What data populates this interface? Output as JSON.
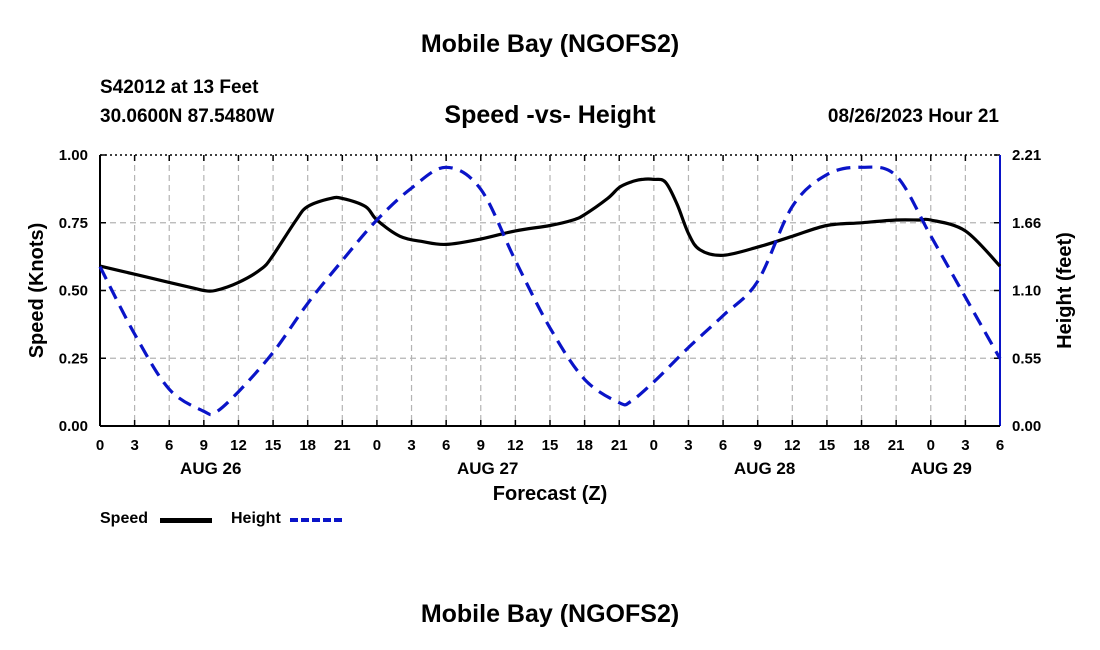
{
  "header": {
    "title": "Mobile Bay (NGOFS2)",
    "station": "S42012 at 13 Feet",
    "coords": "30.0600N  87.5480W",
    "date": "08/26/2023 Hour 21",
    "footer_title": "Mobile Bay (NGOFS2)"
  },
  "colors": {
    "speed": "#000000",
    "height": "#0a14c8",
    "grid": "#b4b4b4"
  },
  "chart_data": {
    "type": "line",
    "title": "Speed -vs- Height",
    "xlabel": "Forecast (Z)",
    "ylabel_left": "Speed (Knots)",
    "ylabel_right": "Height (feet)",
    "xlim": [
      0,
      78
    ],
    "ylim_left": [
      0,
      1.0
    ],
    "ylim_right": [
      0,
      2.21
    ],
    "x_tick_step": 3,
    "x_tick_labels": [
      "0",
      "3",
      "6",
      "9",
      "12",
      "15",
      "18",
      "21",
      "0",
      "3",
      "6",
      "9",
      "12",
      "15",
      "18",
      "21",
      "0",
      "3",
      "6",
      "9",
      "12",
      "15",
      "18",
      "21",
      "0",
      "3",
      "6"
    ],
    "left_tick_labels": [
      "0.00",
      "0.25",
      "0.50",
      "0.75",
      "1.00"
    ],
    "right_tick_labels": [
      "0.00",
      "0.55",
      "1.10",
      "1.66",
      "2.21"
    ],
    "day_labels": [
      {
        "label": "AUG 26",
        "x": 9.6
      },
      {
        "label": "AUG 27",
        "x": 33.6
      },
      {
        "label": "AUG 28",
        "x": 57.6
      },
      {
        "label": "AUG 29",
        "x": 72.9
      }
    ],
    "grid": true,
    "legend": "bottom-left",
    "legend_labels": {
      "speed": "Speed",
      "height": "Height"
    },
    "series": [
      {
        "name": "Speed",
        "axis": "left",
        "style": "solid",
        "x": [
          0,
          3,
          6,
          8,
          9,
          10,
          12,
          14,
          15,
          17,
          18,
          20,
          21,
          23,
          24,
          26,
          28,
          30,
          33,
          36,
          39,
          41,
          42,
          44,
          45,
          46,
          47,
          48,
          49,
          50,
          51,
          52,
          54,
          57,
          60,
          63,
          66,
          69,
          71,
          72,
          75,
          78
        ],
        "values": [
          0.59,
          0.56,
          0.53,
          0.51,
          0.5,
          0.5,
          0.53,
          0.58,
          0.63,
          0.76,
          0.81,
          0.84,
          0.84,
          0.81,
          0.76,
          0.7,
          0.68,
          0.67,
          0.69,
          0.72,
          0.74,
          0.76,
          0.78,
          0.84,
          0.88,
          0.9,
          0.91,
          0.91,
          0.9,
          0.82,
          0.71,
          0.65,
          0.63,
          0.66,
          0.7,
          0.74,
          0.75,
          0.76,
          0.76,
          0.76,
          0.72,
          0.59
        ]
      },
      {
        "name": "Height",
        "axis": "right",
        "style": "dashed",
        "x": [
          0,
          3,
          6,
          9,
          10,
          12,
          15,
          18,
          21,
          24,
          27,
          30,
          33,
          36,
          39,
          42,
          45,
          46,
          48,
          51,
          54,
          57,
          60,
          63,
          66,
          69,
          72,
          75,
          78
        ],
        "values": [
          1.3,
          0.75,
          0.3,
          0.12,
          0.11,
          0.28,
          0.6,
          1.0,
          1.35,
          1.68,
          1.94,
          2.11,
          1.93,
          1.35,
          0.8,
          0.38,
          0.19,
          0.2,
          0.36,
          0.64,
          0.9,
          1.18,
          1.79,
          2.05,
          2.11,
          2.04,
          1.55,
          1.05,
          0.55
        ]
      }
    ]
  }
}
